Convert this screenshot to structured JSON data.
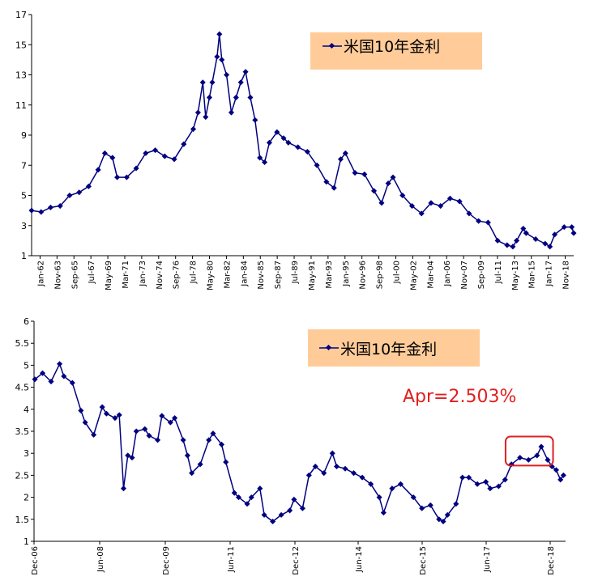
{
  "chart_data": [
    {
      "type": "line",
      "legend": "米国10年金利",
      "legend_position": "top-right",
      "ylim": [
        1,
        17
      ],
      "yticks": [
        1,
        3,
        5,
        7,
        9,
        11,
        13,
        15,
        17
      ],
      "x_tick_labels": [
        "Jan-62",
        "Nov-63",
        "Sep-65",
        "Jul-67",
        "May-69",
        "Mar-71",
        "Jan-73",
        "Nov-74",
        "Sep-76",
        "Jul-78",
        "May-80",
        "Mar-82",
        "Jan-84",
        "Nov-85",
        "Sep-87",
        "Jul-89",
        "May-91",
        "Mar-93",
        "Jan-95",
        "Nov-96",
        "Sep-98",
        "Jul-00",
        "May-02",
        "Mar-04",
        "Jan-06",
        "Nov-07",
        "Sep-09",
        "Jul-11",
        "May-13",
        "Mar-15",
        "Jan-17",
        "Nov-18"
      ],
      "x_range": [
        1962.0,
        2019.0
      ],
      "series": [
        {
          "name": "米国10年金利",
          "x": [
            1962.0,
            1963.0,
            1964.0,
            1965.0,
            1966.0,
            1967.0,
            1968.0,
            1969.0,
            1969.7,
            1970.5,
            1971.0,
            1972.0,
            1973.0,
            1974.0,
            1975.0,
            1976.0,
            1977.0,
            1978.0,
            1979.0,
            1979.5,
            1980.0,
            1980.3,
            1980.7,
            1981.0,
            1981.5,
            1981.75,
            1982.0,
            1982.5,
            1983.0,
            1983.5,
            1984.0,
            1984.5,
            1985.0,
            1985.5,
            1986.0,
            1986.5,
            1987.0,
            1987.8,
            1988.5,
            1989.0,
            1990.0,
            1991.0,
            1992.0,
            1993.0,
            1993.8,
            1994.5,
            1995.0,
            1996.0,
            1997.0,
            1998.0,
            1998.8,
            1999.5,
            2000.0,
            2001.0,
            2002.0,
            2003.0,
            2004.0,
            2005.0,
            2006.0,
            2007.0,
            2008.0,
            2009.0,
            2010.0,
            2011.0,
            2012.0,
            2012.6,
            2013.0,
            2013.7,
            2014.0,
            2015.0,
            2016.0,
            2016.5,
            2017.0,
            2018.0,
            2018.8,
            2019.0
          ],
          "y": [
            4.0,
            3.9,
            4.2,
            4.3,
            5.0,
            5.2,
            5.6,
            6.7,
            7.8,
            7.5,
            6.2,
            6.2,
            6.8,
            7.8,
            8.0,
            7.6,
            7.4,
            8.4,
            9.4,
            10.5,
            12.5,
            10.2,
            11.5,
            12.5,
            14.2,
            15.7,
            14.0,
            13.0,
            10.5,
            11.5,
            12.5,
            13.2,
            11.5,
            10.0,
            7.5,
            7.2,
            8.5,
            9.2,
            8.8,
            8.5,
            8.2,
            7.9,
            7.0,
            5.9,
            5.5,
            7.4,
            7.8,
            6.5,
            6.4,
            5.3,
            4.5,
            5.8,
            6.2,
            5.0,
            4.3,
            3.8,
            4.5,
            4.3,
            4.8,
            4.6,
            3.8,
            3.3,
            3.2,
            2.0,
            1.7,
            1.6,
            2.0,
            2.8,
            2.5,
            2.1,
            1.8,
            1.6,
            2.4,
            2.9,
            2.9,
            2.5
          ]
        }
      ]
    },
    {
      "type": "line",
      "legend": "米国10年金利",
      "legend_position": "top-right",
      "ylim": [
        1,
        6
      ],
      "yticks": [
        1,
        1.5,
        2,
        2.5,
        3,
        3.5,
        4,
        4.5,
        5,
        5.5,
        6
      ],
      "x_tick_labels": [
        "Dec-06",
        "Jun-08",
        "Dec-09",
        "Jun-11",
        "Dec-12",
        "Jun-14",
        "Dec-15",
        "Jun-17",
        "Dec-18"
      ],
      "x_range": [
        2006.9,
        2019.37
      ],
      "annotation": "Apr=2.503%",
      "highlight": {
        "x_from": 2018.0,
        "x_to": 2019.0,
        "note": "red rounded box"
      },
      "series": [
        {
          "name": "米国10年金利",
          "x": [
            2006.92,
            2007.1,
            2007.3,
            2007.5,
            2007.6,
            2007.8,
            2008.0,
            2008.1,
            2008.3,
            2008.5,
            2008.6,
            2008.8,
            2008.9,
            2009.0,
            2009.1,
            2009.2,
            2009.3,
            2009.5,
            2009.6,
            2009.8,
            2009.9,
            2010.1,
            2010.2,
            2010.4,
            2010.5,
            2010.6,
            2010.8,
            2011.0,
            2011.1,
            2011.3,
            2011.4,
            2011.6,
            2011.7,
            2011.9,
            2012.0,
            2012.2,
            2012.3,
            2012.5,
            2012.7,
            2012.9,
            2013.0,
            2013.2,
            2013.35,
            2013.5,
            2013.7,
            2013.9,
            2014.0,
            2014.2,
            2014.4,
            2014.6,
            2014.8,
            2015.0,
            2015.1,
            2015.3,
            2015.5,
            2015.8,
            2016.0,
            2016.2,
            2016.4,
            2016.5,
            2016.6,
            2016.8,
            2016.95,
            2017.1,
            2017.3,
            2017.5,
            2017.6,
            2017.8,
            2017.95,
            2018.1,
            2018.3,
            2018.5,
            2018.7,
            2018.8,
            2018.95,
            2019.05,
            2019.15,
            2019.25,
            2019.32
          ],
          "y": [
            4.68,
            4.82,
            4.63,
            5.03,
            4.75,
            4.6,
            3.97,
            3.7,
            3.42,
            4.05,
            3.9,
            3.8,
            3.87,
            2.2,
            2.95,
            2.9,
            3.5,
            3.55,
            3.4,
            3.3,
            3.85,
            3.7,
            3.8,
            3.3,
            2.95,
            2.55,
            2.75,
            3.3,
            3.45,
            3.2,
            2.8,
            2.1,
            2.0,
            1.85,
            2.0,
            2.2,
            1.6,
            1.45,
            1.6,
            1.7,
            1.95,
            1.75,
            2.5,
            2.7,
            2.55,
            3.0,
            2.7,
            2.65,
            2.55,
            2.45,
            2.3,
            2.0,
            1.65,
            2.2,
            2.3,
            2.0,
            1.75,
            1.82,
            1.5,
            1.45,
            1.6,
            1.85,
            2.45,
            2.45,
            2.3,
            2.35,
            2.2,
            2.25,
            2.4,
            2.75,
            2.9,
            2.85,
            2.95,
            3.15,
            2.85,
            2.7,
            2.62,
            2.4,
            2.5
          ]
        }
      ]
    }
  ],
  "colors": {
    "series": "#000080",
    "legend_box": "#ffcc99",
    "annotation": "#e02020",
    "highlight_box": "#e02020"
  }
}
